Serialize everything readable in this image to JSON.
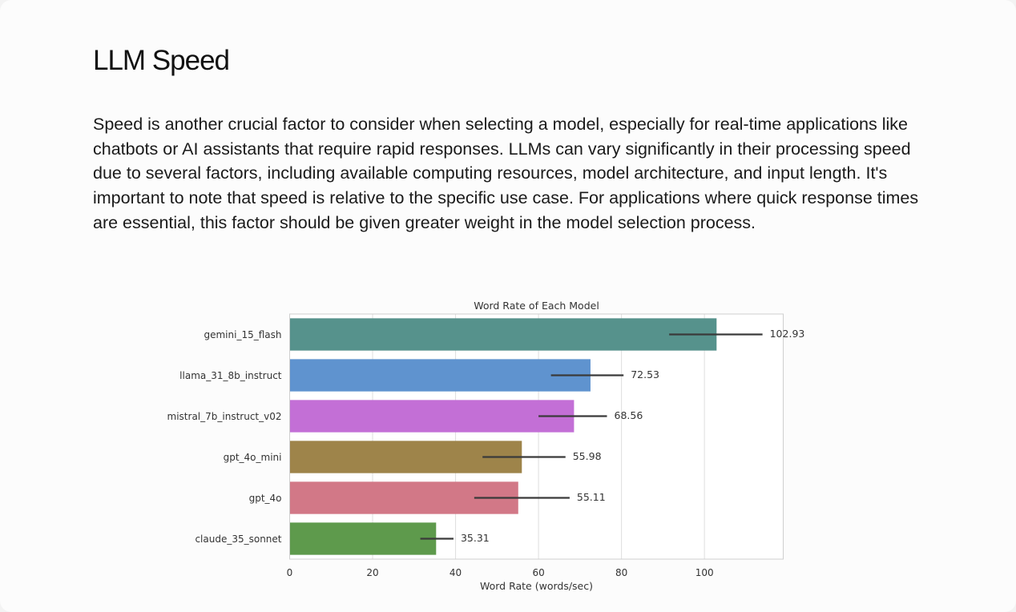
{
  "section": {
    "title": "LLM Speed",
    "paragraph": "Speed is another crucial factor to consider when selecting a model, especially for real-time applications like chatbots or AI assistants that require rapid responses. LLMs can vary significantly in their processing speed due to several factors, including available computing resources, model architecture, and input length. It's important to note that speed is relative to the specific use case. For applications where quick response times are essential, this factor should be given greater weight in the model selection process."
  },
  "chart_data": {
    "type": "bar",
    "orientation": "horizontal",
    "title": "Word Rate of Each Model",
    "xlabel": "Word Rate (words/sec)",
    "ylabel": "",
    "xlim": [
      0,
      119
    ],
    "xticks": [
      0,
      20,
      40,
      60,
      80,
      100
    ],
    "grid": true,
    "categories": [
      "gemini_15_flash",
      "llama_31_8b_instruct",
      "mistral_7b_instruct_v02",
      "gpt_4o_mini",
      "gpt_4o",
      "claude_35_sonnet"
    ],
    "values": [
      102.93,
      72.53,
      68.56,
      55.98,
      55.11,
      35.31
    ],
    "value_labels": [
      "102.93",
      "72.53",
      "68.56",
      "55.98",
      "55.11",
      "35.31"
    ],
    "error_bars": [
      [
        91.5,
        114
      ],
      [
        63,
        80.5
      ],
      [
        60,
        76.5
      ],
      [
        46.5,
        66.5
      ],
      [
        44.5,
        67.5
      ],
      [
        31.5,
        39.5
      ]
    ],
    "colors": [
      "#56928c",
      "#5f93cf",
      "#c36fd6",
      "#9e844a",
      "#d27887",
      "#5e9a4c"
    ]
  }
}
